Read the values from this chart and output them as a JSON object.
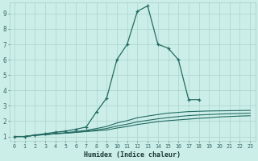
{
  "xlabel": "Humidex (Indice chaleur)",
  "bg_color": "#cceee8",
  "grid_color_major": "#aad4ce",
  "grid_color_minor": "#bbddd8",
  "line_color": "#236b63",
  "xlim": [
    -0.5,
    23.5
  ],
  "ylim": [
    0.7,
    9.7
  ],
  "xticks": [
    0,
    1,
    2,
    3,
    4,
    5,
    6,
    7,
    8,
    9,
    10,
    11,
    12,
    13,
    14,
    15,
    16,
    17,
    18,
    19,
    20,
    21,
    22,
    23
  ],
  "yticks": [
    1,
    2,
    3,
    4,
    5,
    6,
    7,
    8,
    9
  ],
  "series": [
    {
      "x": [
        0,
        1,
        2,
        3,
        4,
        5,
        6,
        7,
        8,
        9,
        10,
        11,
        12,
        13,
        14,
        15,
        16,
        17,
        18,
        19,
        20,
        21,
        22,
        23
      ],
      "y": [
        1.0,
        1.0,
        1.08,
        1.12,
        1.18,
        1.22,
        1.27,
        1.32,
        1.37,
        1.42,
        1.55,
        1.65,
        1.78,
        1.87,
        1.97,
        2.03,
        2.08,
        2.13,
        2.18,
        2.22,
        2.27,
        2.3,
        2.33,
        2.35
      ],
      "marker": false
    },
    {
      "x": [
        0,
        1,
        2,
        3,
        4,
        5,
        6,
        7,
        8,
        9,
        10,
        11,
        12,
        13,
        14,
        15,
        16,
        17,
        18,
        19,
        20,
        21,
        22,
        23
      ],
      "y": [
        1.0,
        1.0,
        1.08,
        1.12,
        1.18,
        1.22,
        1.27,
        1.35,
        1.43,
        1.52,
        1.68,
        1.8,
        1.95,
        2.05,
        2.15,
        2.23,
        2.3,
        2.36,
        2.4,
        2.43,
        2.46,
        2.48,
        2.5,
        2.52
      ],
      "marker": false
    },
    {
      "x": [
        0,
        1,
        2,
        3,
        4,
        5,
        6,
        7,
        8,
        9,
        10,
        11,
        12,
        13,
        14,
        15,
        16,
        17,
        18,
        19,
        20,
        21,
        22,
        23
      ],
      "y": [
        1.0,
        1.0,
        1.08,
        1.13,
        1.2,
        1.25,
        1.32,
        1.4,
        1.52,
        1.65,
        1.88,
        2.03,
        2.22,
        2.33,
        2.43,
        2.52,
        2.57,
        2.62,
        2.64,
        2.66,
        2.67,
        2.68,
        2.69,
        2.7
      ],
      "marker": false
    },
    {
      "x": [
        0,
        1,
        2,
        3,
        4,
        5,
        6,
        7,
        8,
        9,
        10,
        11,
        12,
        13,
        14,
        15,
        16,
        17,
        18
      ],
      "y": [
        1.0,
        1.0,
        1.1,
        1.18,
        1.28,
        1.35,
        1.47,
        1.62,
        2.6,
        3.5,
        6.0,
        7.0,
        9.15,
        9.5,
        7.0,
        6.75,
        6.0,
        3.4,
        3.4
      ],
      "marker": true
    }
  ]
}
